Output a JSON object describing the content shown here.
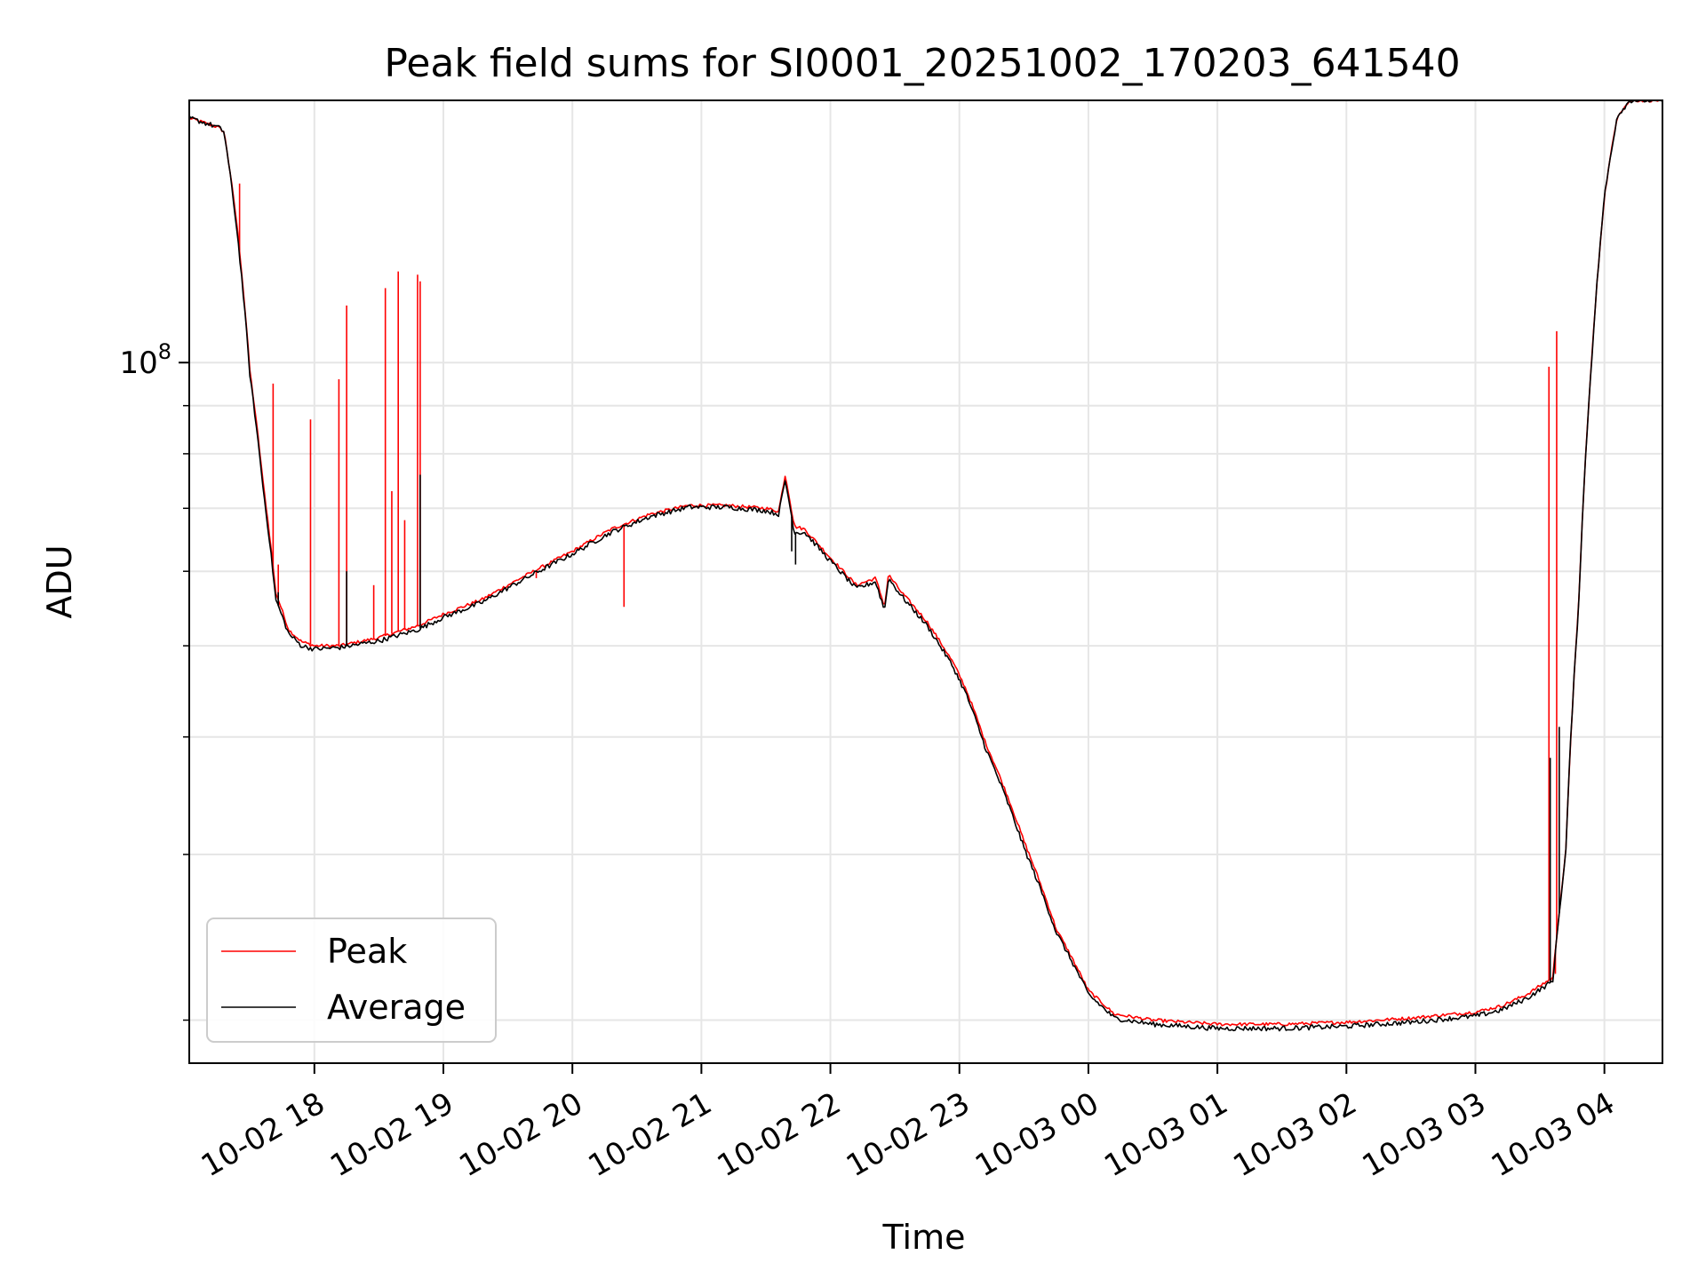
{
  "chart_data": {
    "type": "line",
    "title": "Peak field sums for SI0001_20251002_170203_641540",
    "xlabel": "Time",
    "ylabel": "ADU",
    "yscale": "log",
    "ylim": [
      18000000,
      190000000
    ],
    "y_tick_labels": [
      {
        "value": 100000000,
        "base": "10",
        "exp": "8"
      }
    ],
    "y_minor_ticks": [
      20000000,
      30000000,
      40000000,
      50000000,
      60000000,
      70000000,
      80000000,
      90000000
    ],
    "xlim_hours": [
      17.03,
      28.45
    ],
    "x_ticks": [
      {
        "hours": 18,
        "label": "10-02 18"
      },
      {
        "hours": 19,
        "label": "10-02 19"
      },
      {
        "hours": 20,
        "label": "10-02 20"
      },
      {
        "hours": 21,
        "label": "10-02 21"
      },
      {
        "hours": 22,
        "label": "10-02 22"
      },
      {
        "hours": 23,
        "label": "10-02 23"
      },
      {
        "hours": 24,
        "label": "10-03 00"
      },
      {
        "hours": 25,
        "label": "10-03 01"
      },
      {
        "hours": 26,
        "label": "10-03 02"
      },
      {
        "hours": 27,
        "label": "10-03 03"
      },
      {
        "hours": 28,
        "label": "10-03 04"
      }
    ],
    "grid": true,
    "legend_position": "lower-left",
    "series": [
      {
        "name": "Peak",
        "color": "#ff0000",
        "x_hours": [
          17.03,
          17.25,
          17.3,
          17.4,
          17.5,
          17.6,
          17.7,
          17.8,
          17.9,
          18.0,
          18.2,
          18.5,
          18.8,
          19.0,
          19.3,
          19.6,
          20.0,
          20.3,
          20.6,
          20.9,
          21.2,
          21.5,
          21.6,
          21.65,
          21.72,
          21.8,
          22.0,
          22.2,
          22.35,
          22.42,
          22.45,
          22.55,
          22.75,
          22.95,
          23.05,
          23.2,
          23.5,
          23.75,
          24.0,
          24.2,
          24.5,
          25.0,
          25.5,
          26.0,
          26.5,
          27.0,
          27.2,
          27.4,
          27.6,
          27.7,
          27.8,
          27.9,
          28.0,
          28.1,
          28.2,
          28.3,
          28.45
        ],
        "y_millions": [
          182,
          178,
          176,
          140,
          98,
          75,
          57,
          52,
          50.5,
          50,
          50,
          51,
          52.5,
          54,
          56,
          59,
          63,
          66.5,
          69,
          70.5,
          70.5,
          70,
          69.5,
          76,
          67,
          66.5,
          62,
          58,
          59,
          55,
          59.5,
          57,
          53,
          48,
          45,
          39.5,
          31,
          25,
          21.5,
          20.3,
          20,
          19.8,
          19.8,
          19.9,
          20.1,
          20.4,
          20.7,
          21.3,
          22.2,
          30,
          55,
          100,
          150,
          183,
          190,
          190,
          190
        ],
        "spikes": [
          {
            "hours": 17.42,
            "y_millions": 155
          },
          {
            "hours": 17.68,
            "y_millions": 95
          },
          {
            "hours": 17.72,
            "y_millions": 61
          },
          {
            "hours": 17.97,
            "y_millions": 87
          },
          {
            "hours": 18.19,
            "y_millions": 96
          },
          {
            "hours": 18.25,
            "y_millions": 115
          },
          {
            "hours": 18.46,
            "y_millions": 58
          },
          {
            "hours": 18.55,
            "y_millions": 120
          },
          {
            "hours": 18.6,
            "y_millions": 73
          },
          {
            "hours": 18.65,
            "y_millions": 125
          },
          {
            "hours": 18.7,
            "y_millions": 68
          },
          {
            "hours": 18.8,
            "y_millions": 124
          },
          {
            "hours": 18.82,
            "y_millions": 122
          },
          {
            "hours": 19.72,
            "y_millions": 59
          },
          {
            "hours": 20.4,
            "y_millions": 55
          },
          {
            "hours": 27.27,
            "y_millions": 20.8
          },
          {
            "hours": 27.57,
            "y_millions": 99
          },
          {
            "hours": 27.63,
            "y_millions": 108
          },
          {
            "hours": 27.62,
            "y_millions": 22.4
          }
        ]
      },
      {
        "name": "Average",
        "color": "#000000",
        "x_hours": [
          17.03,
          17.25,
          17.3,
          17.4,
          17.5,
          17.6,
          17.7,
          17.8,
          17.9,
          18.0,
          18.2,
          18.5,
          18.8,
          19.0,
          19.3,
          19.6,
          20.0,
          20.3,
          20.6,
          20.9,
          21.2,
          21.5,
          21.6,
          21.65,
          21.72,
          21.8,
          22.0,
          22.2,
          22.35,
          22.42,
          22.45,
          22.55,
          22.75,
          22.95,
          23.05,
          23.2,
          23.5,
          23.75,
          24.0,
          24.2,
          24.5,
          25.0,
          25.5,
          26.0,
          26.5,
          27.0,
          27.2,
          27.4,
          27.6,
          27.7,
          27.8,
          27.9,
          28.0,
          28.1,
          28.2,
          28.3,
          28.45
        ],
        "y_millions": [
          182,
          178,
          176,
          138,
          97,
          74,
          56,
          51.5,
          50,
          49.6,
          49.8,
          50.6,
          52,
          53.6,
          55.6,
          58.6,
          62.6,
          66,
          68.6,
          70.2,
          70.2,
          69.6,
          69,
          75,
          66,
          66,
          61.5,
          57.5,
          58.5,
          54.5,
          59,
          56.5,
          52.5,
          47.5,
          44.5,
          39,
          30.5,
          24.8,
          21.3,
          20.1,
          19.8,
          19.6,
          19.6,
          19.7,
          19.9,
          20.2,
          20.5,
          21.1,
          22,
          30,
          55,
          100,
          150,
          183,
          190,
          190,
          190
        ],
        "spikes": [
          {
            "hours": 17.72,
            "y_millions": 57
          },
          {
            "hours": 18.25,
            "y_millions": 60
          },
          {
            "hours": 18.82,
            "y_millions": 76
          },
          {
            "hours": 21.7,
            "y_millions": 63
          },
          {
            "hours": 21.73,
            "y_millions": 61
          },
          {
            "hours": 27.58,
            "y_millions": 38
          },
          {
            "hours": 27.65,
            "y_millions": 41
          }
        ]
      }
    ]
  }
}
